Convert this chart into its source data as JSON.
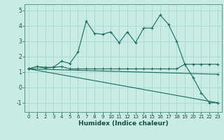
{
  "title": "",
  "xlabel": "Humidex (Indice chaleur)",
  "ylabel": "",
  "background_color": "#c8ebe6",
  "grid_color": "#a8d8d0",
  "line_color": "#1a6b5a",
  "xlim": [
    -0.5,
    23.5
  ],
  "ylim": [
    -1.6,
    5.4
  ],
  "yticks": [
    -1,
    0,
    1,
    2,
    3,
    4,
    5
  ],
  "xticks": [
    0,
    1,
    2,
    3,
    4,
    5,
    6,
    7,
    8,
    9,
    10,
    11,
    12,
    13,
    14,
    15,
    16,
    17,
    18,
    19,
    20,
    21,
    22,
    23
  ],
  "series": [
    {
      "x": [
        0,
        1,
        2,
        3,
        4,
        5,
        6,
        7,
        8,
        9,
        10,
        11,
        12,
        13,
        14,
        15,
        16,
        17,
        18,
        19,
        20,
        21,
        22,
        23
      ],
      "y": [
        1.2,
        1.35,
        1.3,
        1.3,
        1.7,
        1.55,
        2.3,
        4.3,
        3.5,
        3.45,
        3.6,
        2.9,
        3.6,
        2.9,
        3.85,
        3.85,
        4.7,
        4.1,
        3.0,
        1.5,
        0.65,
        -0.35,
        -1.0,
        -1.0
      ]
    },
    {
      "x": [
        0,
        1,
        2,
        3,
        4,
        5,
        6,
        7,
        8,
        9,
        10,
        11,
        12,
        13,
        14,
        15,
        16,
        17,
        18,
        19,
        20,
        21,
        22,
        23
      ],
      "y": [
        1.2,
        1.35,
        1.25,
        1.3,
        1.35,
        1.2,
        1.2,
        1.2,
        1.2,
        1.2,
        1.2,
        1.2,
        1.2,
        1.2,
        1.2,
        1.2,
        1.2,
        1.2,
        1.2,
        1.5,
        1.5,
        1.5,
        1.5,
        1.5
      ]
    },
    {
      "x": [
        0,
        23
      ],
      "y": [
        1.2,
        -1.0
      ]
    },
    {
      "x": [
        0,
        23
      ],
      "y": [
        1.2,
        0.85
      ]
    }
  ]
}
